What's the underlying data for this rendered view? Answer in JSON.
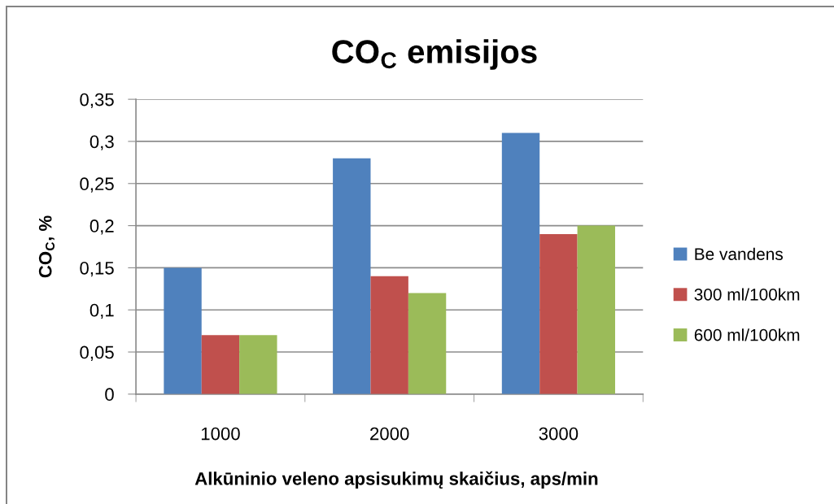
{
  "chart_data": {
    "type": "bar",
    "title": "CO$_{C}$ emisijos",
    "xlabel": "Alkūninio veleno apsisukimų skaičius, aps/min",
    "ylabel": "CO$_{C}$, %",
    "categories": [
      "1000",
      "2000",
      "3000"
    ],
    "series": [
      {
        "name": "Be vandens",
        "color": "#4f81bd",
        "values": [
          0.15,
          0.28,
          0.31
        ]
      },
      {
        "name": "300 ml/100km",
        "color": "#c0504d",
        "values": [
          0.07,
          0.14,
          0.19
        ]
      },
      {
        "name": "600 ml/100km",
        "color": "#9bbb59",
        "values": [
          0.07,
          0.12,
          0.2
        ]
      }
    ],
    "ylim": [
      0,
      0.35
    ],
    "yticks": [
      0,
      {
        "value": 0.05,
        "label": "0,05"
      },
      {
        "value": 0.1,
        "label": "0,1"
      },
      {
        "value": 0.15,
        "label": "0,15"
      },
      {
        "value": 0.2,
        "label": "0,2"
      },
      {
        "value": 0.25,
        "label": "0,25"
      },
      {
        "value": 0.3,
        "label": "0,3"
      },
      {
        "value": 0.35,
        "label": "0,35"
      }
    ],
    "grid": "y",
    "legend": "right"
  }
}
